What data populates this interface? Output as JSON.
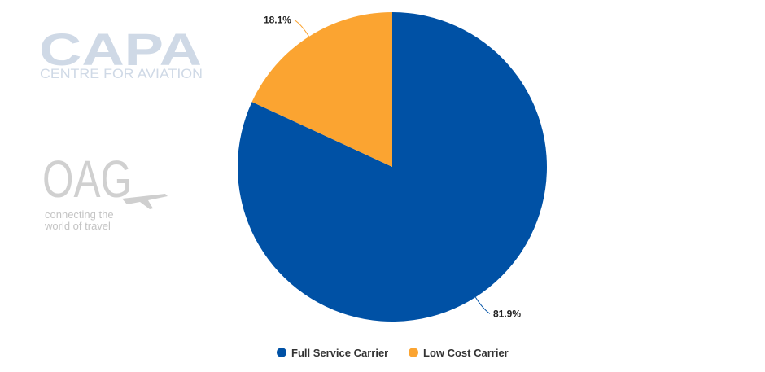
{
  "logos": {
    "capa_name": "CAPA",
    "capa_tagline": "CENTRE FOR AVIATION",
    "oag_name": "OAG",
    "oag_tagline_line1": "connecting the",
    "oag_tagline_line2": "world of travel"
  },
  "chart_data": {
    "type": "pie",
    "categories": [
      "Full Service Carrier",
      "Low Cost Carrier"
    ],
    "values": [
      81.9,
      18.1
    ],
    "data_labels": [
      "81.9%",
      "18.1%"
    ],
    "colors": [
      "#0051a5",
      "#fba431"
    ],
    "legend_placement": "bottom",
    "legend": [
      "Full Service Carrier",
      "Low Cost Carrier"
    ]
  }
}
